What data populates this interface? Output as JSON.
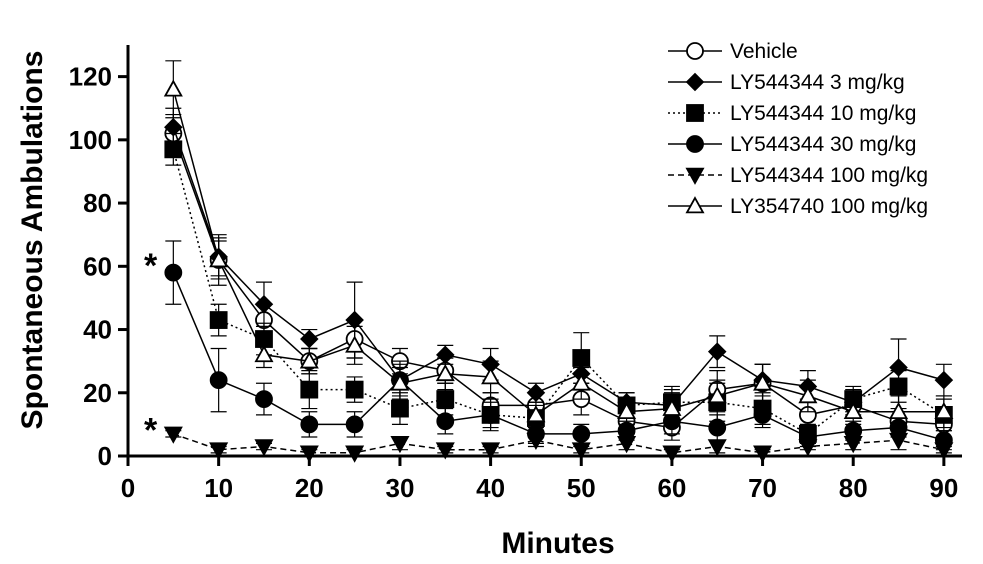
{
  "chart_data": {
    "type": "line",
    "title": "",
    "xlabel": "Minutes",
    "ylabel": "Spontaneous Ambulations",
    "xlim": [
      0,
      92
    ],
    "ylim": [
      0,
      130
    ],
    "xticks": [
      0,
      10,
      20,
      30,
      40,
      50,
      60,
      70,
      80,
      90
    ],
    "yticks": [
      0,
      20,
      40,
      60,
      80,
      100,
      120
    ],
    "grid": false,
    "legend_position": "top-right",
    "x": [
      5,
      10,
      15,
      20,
      25,
      30,
      35,
      40,
      45,
      50,
      55,
      60,
      65,
      70,
      75,
      80,
      85,
      90
    ],
    "series": [
      {
        "name": "Vehicle",
        "marker": "circle-open",
        "line_style": "solid",
        "values": [
          102,
          62,
          43,
          30,
          37,
          30,
          27,
          16,
          16,
          18,
          11,
          9,
          21,
          23,
          13,
          16,
          11,
          10
        ],
        "errors": [
          6,
          8,
          5,
          4,
          6,
          4,
          4,
          4,
          4,
          5,
          4,
          4,
          6,
          6,
          5,
          4,
          4,
          4
        ]
      },
      {
        "name": "LY544344 3 mg/kg",
        "marker": "diamond",
        "line_style": "solid",
        "values": [
          104,
          63,
          48,
          37,
          43,
          24,
          32,
          29,
          20,
          26,
          17,
          16,
          33,
          24,
          22,
          17,
          28,
          24
        ],
        "errors": [
          6,
          6,
          7,
          3,
          12,
          5,
          3,
          5,
          3,
          5,
          3,
          5,
          5,
          5,
          5,
          4,
          9,
          5
        ]
      },
      {
        "name": "LY544344 10 mg/kg",
        "marker": "square",
        "line_style": "dotted",
        "values": [
          97,
          43,
          37,
          21,
          21,
          15,
          18,
          13,
          12,
          31,
          16,
          17,
          17,
          15,
          7,
          18,
          22,
          13
        ],
        "errors": [
          5,
          5,
          5,
          6,
          4,
          5,
          5,
          4,
          4,
          8,
          4,
          5,
          6,
          5,
          3,
          4,
          5,
          5
        ]
      },
      {
        "name": "LY544344 30 mg/kg",
        "marker": "circle-filled",
        "line_style": "solid",
        "values": [
          58,
          24,
          18,
          10,
          10,
          24,
          11,
          13,
          7,
          7,
          8,
          11,
          9,
          13,
          6,
          8,
          9,
          5
        ],
        "errors": [
          10,
          10,
          5,
          4,
          4,
          6,
          4,
          5,
          3,
          3,
          3,
          4,
          4,
          4,
          3,
          3,
          3,
          3
        ]
      },
      {
        "name": "LY544344 100 mg/kg",
        "marker": "triangle-down-filled",
        "line_style": "dashed",
        "values": [
          7,
          2,
          3,
          1,
          1,
          4,
          2,
          2,
          5,
          2,
          4,
          1,
          3,
          1,
          3,
          4,
          5,
          2
        ],
        "errors": [
          1,
          1,
          1,
          1,
          1,
          2,
          1,
          1,
          2,
          1,
          2,
          1,
          2,
          1,
          1,
          2,
          3,
          1
        ]
      },
      {
        "name": "LY354740 100 mg/kg",
        "marker": "triangle-up-open",
        "line_style": "solid",
        "values": [
          116,
          62,
          32,
          30,
          35,
          23,
          26,
          25,
          13,
          23,
          14,
          15,
          19,
          23,
          19,
          14,
          14,
          14
        ],
        "errors": [
          9,
          6,
          4,
          4,
          6,
          5,
          5,
          5,
          4,
          5,
          4,
          5,
          5,
          6,
          5,
          4,
          5,
          5
        ]
      }
    ],
    "annotations": [
      {
        "text": "*",
        "x": 2.5,
        "y": 61,
        "label": "significance-upper"
      },
      {
        "text": "*",
        "x": 2.5,
        "y": 9,
        "label": "significance-lower"
      }
    ]
  }
}
